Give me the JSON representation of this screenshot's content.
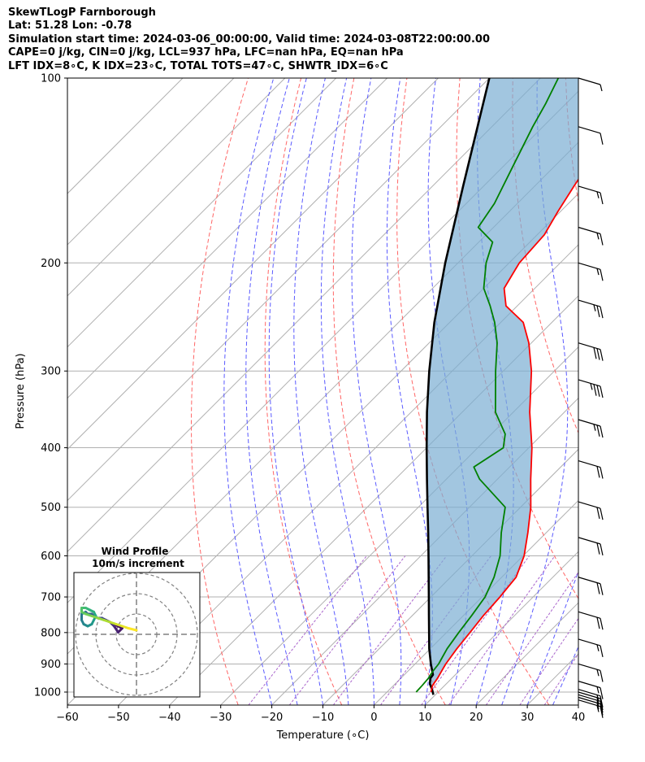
{
  "header": {
    "line1": "SkewTLogP Farnborough",
    "line2": "Lat: 51.28   Lon: -0.78",
    "line3": "Simulation start time: 2024-03-06_00:00:00, Valid time: 2024-03-08T22:00:00.00",
    "line4": "CAPE=0 j/kg, CIN=0 j/kg, LCL=937 hPa, LFC=nan hPa, EQ=nan hPa",
    "line5": "LFT IDX=8∘C, K IDX=23∘C, TOTAL TOTS=47∘C, SHWTR_IDX=6∘C"
  },
  "chart_data": {
    "type": "line",
    "subtype": "skew-T log-P diagram",
    "xlabel": "Temperature (∘C)",
    "ylabel": "Pressure (hPa)",
    "xlim": [
      -60,
      40
    ],
    "ylim": [
      1050,
      100
    ],
    "y_scale": "log",
    "skew_deg": 45,
    "x_ticks": [
      -60,
      -50,
      -40,
      -30,
      -20,
      -10,
      0,
      10,
      20,
      30,
      40
    ],
    "y_ticks": [
      100,
      200,
      300,
      400,
      500,
      600,
      700,
      800,
      900,
      1000
    ],
    "grid": true,
    "colors": {
      "temperature": "#ff0000",
      "dewpoint": "#008000",
      "parcel": "#000000",
      "cape_fill": "#7aaed3",
      "dry_adiabats": "#ff6666",
      "moist_adiabats": "#5a5aff",
      "mixing_ratio": "#aa66cc",
      "isotherms": "#b0b0b0"
    },
    "series": [
      {
        "name": "Temperature",
        "points": [
          [
            1000,
            8.6
          ],
          [
            975,
            7.6
          ],
          [
            950,
            7.2
          ],
          [
            925,
            6.6
          ],
          [
            900,
            6.0
          ],
          [
            850,
            5.2
          ],
          [
            800,
            4.6
          ],
          [
            750,
            3.9
          ],
          [
            700,
            3.5
          ],
          [
            650,
            2.8
          ],
          [
            600,
            0.2
          ],
          [
            550,
            -3.6
          ],
          [
            500,
            -8.0
          ],
          [
            450,
            -13.5
          ],
          [
            400,
            -19.4
          ],
          [
            350,
            -26.8
          ],
          [
            300,
            -34.5
          ],
          [
            270,
            -40.5
          ],
          [
            250,
            -45.6
          ],
          [
            235,
            -52.2
          ],
          [
            220,
            -56.0
          ],
          [
            200,
            -58.0
          ],
          [
            180,
            -58.6
          ],
          [
            165,
            -60.5
          ],
          [
            150,
            -62.3
          ],
          [
            130,
            -64.8
          ],
          [
            115,
            -65.8
          ],
          [
            100,
            -66.5
          ]
        ]
      },
      {
        "name": "Dewpoint",
        "points": [
          [
            1000,
            5.7
          ],
          [
            975,
            5.6
          ],
          [
            950,
            5.4
          ],
          [
            925,
            4.9
          ],
          [
            900,
            4.6
          ],
          [
            850,
            3.3
          ],
          [
            800,
            2.4
          ],
          [
            750,
            1.6
          ],
          [
            700,
            0.6
          ],
          [
            650,
            -1.5
          ],
          [
            600,
            -4.5
          ],
          [
            550,
            -8.8
          ],
          [
            500,
            -13.0
          ],
          [
            450,
            -23.5
          ],
          [
            430,
            -27.0
          ],
          [
            400,
            -25.0
          ],
          [
            380,
            -27.3
          ],
          [
            350,
            -33.5
          ],
          [
            300,
            -41.5
          ],
          [
            270,
            -46.7
          ],
          [
            250,
            -51.2
          ],
          [
            235,
            -55.3
          ],
          [
            220,
            -60.0
          ],
          [
            200,
            -64.5
          ],
          [
            185,
            -67.3
          ],
          [
            175,
            -73.0
          ],
          [
            160,
            -74.5
          ],
          [
            140,
            -78.0
          ],
          [
            120,
            -82.0
          ],
          [
            110,
            -84.0
          ],
          [
            100,
            -86.5
          ]
        ]
      },
      {
        "name": "Parcel",
        "points": [
          [
            1010,
            9.6
          ],
          [
            990,
            8.3
          ],
          [
            970,
            6.8
          ],
          [
            950,
            5.8
          ],
          [
            937,
            5.6
          ],
          [
            900,
            3.1
          ],
          [
            850,
            -0.2
          ],
          [
            800,
            -3.4
          ],
          [
            750,
            -6.8
          ],
          [
            700,
            -10.4
          ],
          [
            650,
            -14.3
          ],
          [
            600,
            -18.5
          ],
          [
            550,
            -23.1
          ],
          [
            500,
            -28.2
          ],
          [
            450,
            -33.8
          ],
          [
            400,
            -40.0
          ],
          [
            350,
            -46.9
          ],
          [
            300,
            -54.5
          ],
          [
            250,
            -63.0
          ],
          [
            200,
            -72.5
          ],
          [
            150,
            -84.0
          ],
          [
            100,
            -100.0
          ]
        ]
      }
    ],
    "wind_barbs": [
      {
        "p": 100,
        "kt": 5
      },
      {
        "p": 120,
        "kt": 10
      },
      {
        "p": 150,
        "kt": 15
      },
      {
        "p": 175,
        "kt": 15
      },
      {
        "p": 200,
        "kt": 15
      },
      {
        "p": 230,
        "kt": 25
      },
      {
        "p": 270,
        "kt": 30
      },
      {
        "p": 310,
        "kt": 35
      },
      {
        "p": 360,
        "kt": 25
      },
      {
        "p": 420,
        "kt": 20
      },
      {
        "p": 490,
        "kt": 20
      },
      {
        "p": 560,
        "kt": 20
      },
      {
        "p": 650,
        "kt": 20
      },
      {
        "p": 740,
        "kt": 20
      },
      {
        "p": 820,
        "kt": 15
      },
      {
        "p": 900,
        "kt": 15
      },
      {
        "p": 960,
        "kt": 15
      },
      {
        "p": 990,
        "kt": 15
      },
      {
        "p": 1000,
        "kt": 15
      },
      {
        "p": 1010,
        "kt": 15
      },
      {
        "p": 1020,
        "kt": 15
      },
      {
        "p": 1030,
        "kt": 15
      }
    ],
    "hodograph": {
      "title_line1": "Wind Profile",
      "title_line2": "10m/s increment",
      "ring_step_ms": 10,
      "rings": 3,
      "uv_ms": [
        [
          -11,
          5
        ],
        [
          -9,
          4
        ],
        [
          -7,
          3
        ],
        [
          -9,
          1
        ],
        [
          -11,
          4
        ],
        [
          -13,
          6
        ],
        [
          -15,
          7
        ],
        [
          -17,
          8
        ],
        [
          -19,
          8
        ],
        [
          -21,
          9
        ],
        [
          -22,
          10
        ],
        [
          -24,
          10
        ],
        [
          -25,
          11
        ],
        [
          -27,
          10
        ],
        [
          -27,
          7
        ],
        [
          -26,
          5
        ],
        [
          -24,
          4
        ],
        [
          -22,
          5
        ],
        [
          -21,
          7
        ],
        [
          -20,
          9
        ],
        [
          -21,
          11
        ],
        [
          -23,
          12
        ],
        [
          -25,
          13
        ],
        [
          -27,
          13
        ],
        [
          -27,
          11
        ],
        [
          -25,
          10
        ],
        [
          -22,
          9
        ],
        [
          -19,
          8
        ],
        [
          -16,
          7
        ],
        [
          -13,
          6
        ],
        [
          -10,
          5
        ],
        [
          -7,
          4
        ],
        [
          -4,
          3
        ],
        [
          0,
          2
        ]
      ]
    }
  }
}
